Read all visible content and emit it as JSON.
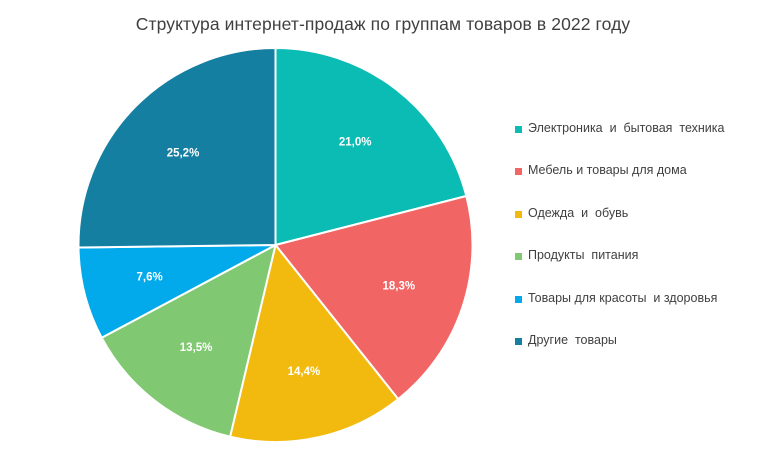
{
  "chart_data": {
    "type": "pie",
    "title": "Структура интернет-продаж  по группам товаров  в 2022  году",
    "start_angle_deg": 0,
    "direction": "clockwise",
    "legend_position": "right",
    "slices": [
      {
        "label": "Электроника  и  бытовая  техника",
        "value": 21.0,
        "display": "21,0%",
        "color": "#0bbcb5"
      },
      {
        "label": "Мебель и товары для дома",
        "value": 18.3,
        "display": "18,3%",
        "color": "#f26565"
      },
      {
        "label": "Одежда  и  обувь",
        "value": 14.4,
        "display": "14,4%",
        "color": "#f2b90f"
      },
      {
        "label": "Продукты  питания",
        "value": 13.5,
        "display": "13,5%",
        "color": "#80c871"
      },
      {
        "label": "Товары для красоты  и здоровья",
        "value": 7.6,
        "display": "7,6%",
        "color": "#03aaeb"
      },
      {
        "label": "Другие  товары",
        "value": 25.2,
        "display": "25,2%",
        "color": "#147fa1"
      }
    ]
  }
}
